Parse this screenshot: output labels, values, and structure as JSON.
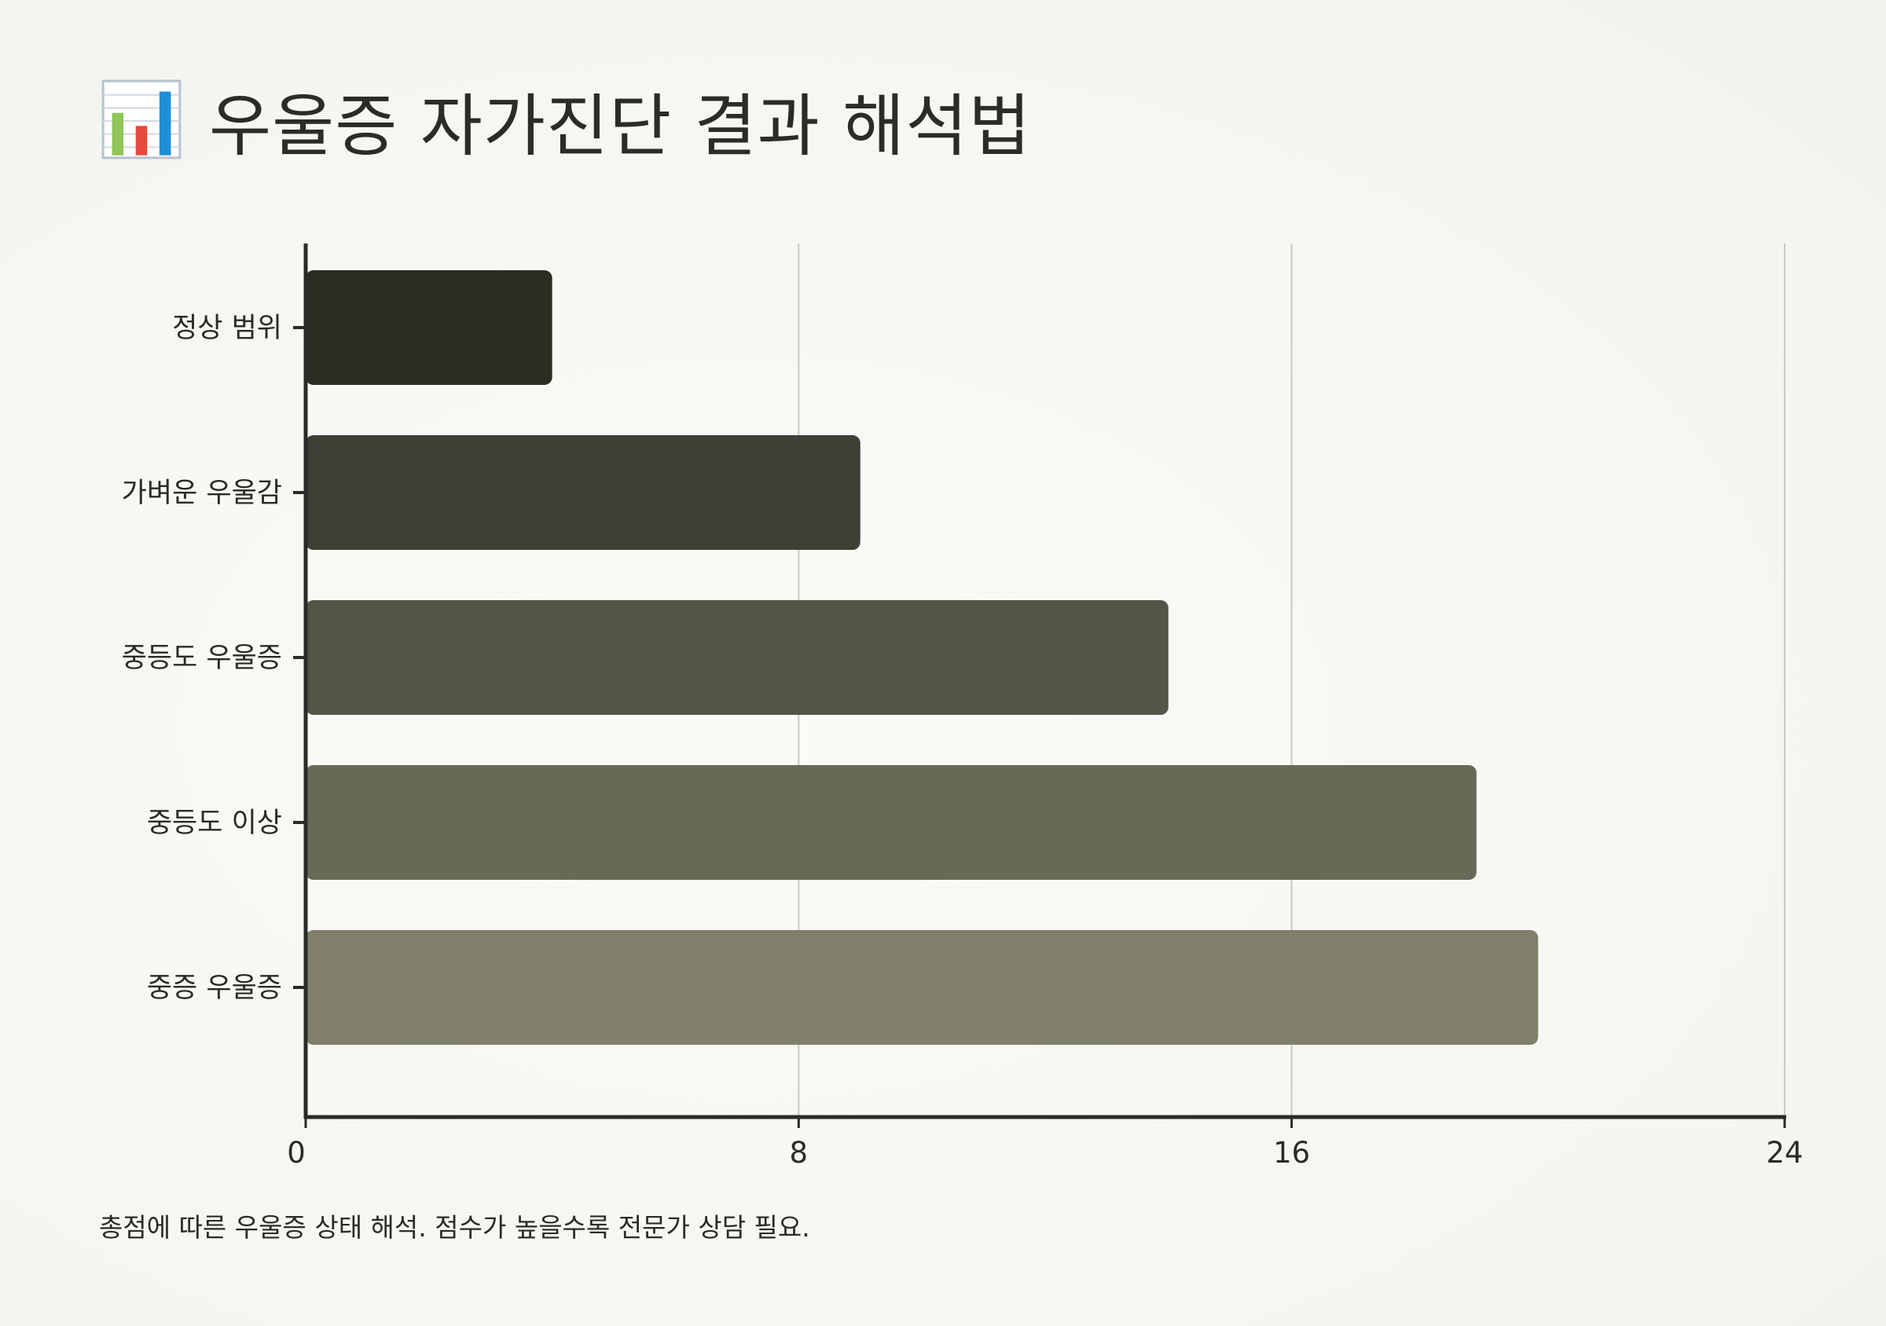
{
  "title": "우울증 자가진단 결과 해석법",
  "title_icon": "bar-chart-icon",
  "caption": "총점에 따른 우울증 상태 해석. 점수가 높을수록 전문가 상담 필요.",
  "chart_data": {
    "type": "bar",
    "orientation": "horizontal",
    "categories": [
      "정상 범위",
      "가벼운 우울감",
      "중등도 우울증",
      "중등도 이상",
      "중증 우울증"
    ],
    "values": [
      4,
      9,
      14,
      19,
      20
    ],
    "xlim": [
      0,
      24
    ],
    "xticks": [
      "0",
      "8",
      "16",
      "24"
    ],
    "grid": true,
    "legend": "none",
    "colors": [
      "#2c2c25",
      "#3f3f36",
      "#545547",
      "#686957",
      "#807f6b"
    ]
  }
}
